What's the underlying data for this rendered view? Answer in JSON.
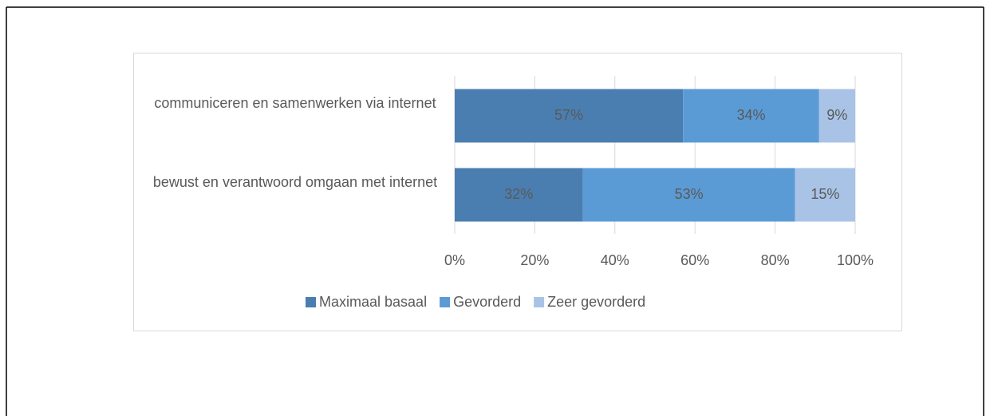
{
  "chart_data": {
    "type": "stacked-bar-horizontal",
    "categories": [
      "communiceren en samenwerken via internet",
      "bewust en verantwoord omgaan met internet"
    ],
    "series": [
      {
        "name": "Maximaal basaal",
        "color": "#4a7eb0",
        "values": [
          57,
          32
        ],
        "value_labels": [
          "57%",
          "32%"
        ]
      },
      {
        "name": "Gevorderd",
        "color": "#5b9bd5",
        "values": [
          34,
          53
        ],
        "value_labels": [
          "34%",
          "53%"
        ]
      },
      {
        "name": "Zeer gevorderd",
        "color": "#a9c3e6",
        "values": [
          9,
          15
        ],
        "value_labels": [
          "9%",
          "15%"
        ]
      }
    ],
    "xlim": [
      0,
      100
    ],
    "xticks": [
      {
        "value": 0,
        "label": "0%"
      },
      {
        "value": 20,
        "label": "20%"
      },
      {
        "value": 40,
        "label": "40%"
      },
      {
        "value": 60,
        "label": "60%"
      },
      {
        "value": 80,
        "label": "80%"
      },
      {
        "value": 100,
        "label": "100%"
      }
    ],
    "grid": true,
    "legend": "bottom"
  }
}
